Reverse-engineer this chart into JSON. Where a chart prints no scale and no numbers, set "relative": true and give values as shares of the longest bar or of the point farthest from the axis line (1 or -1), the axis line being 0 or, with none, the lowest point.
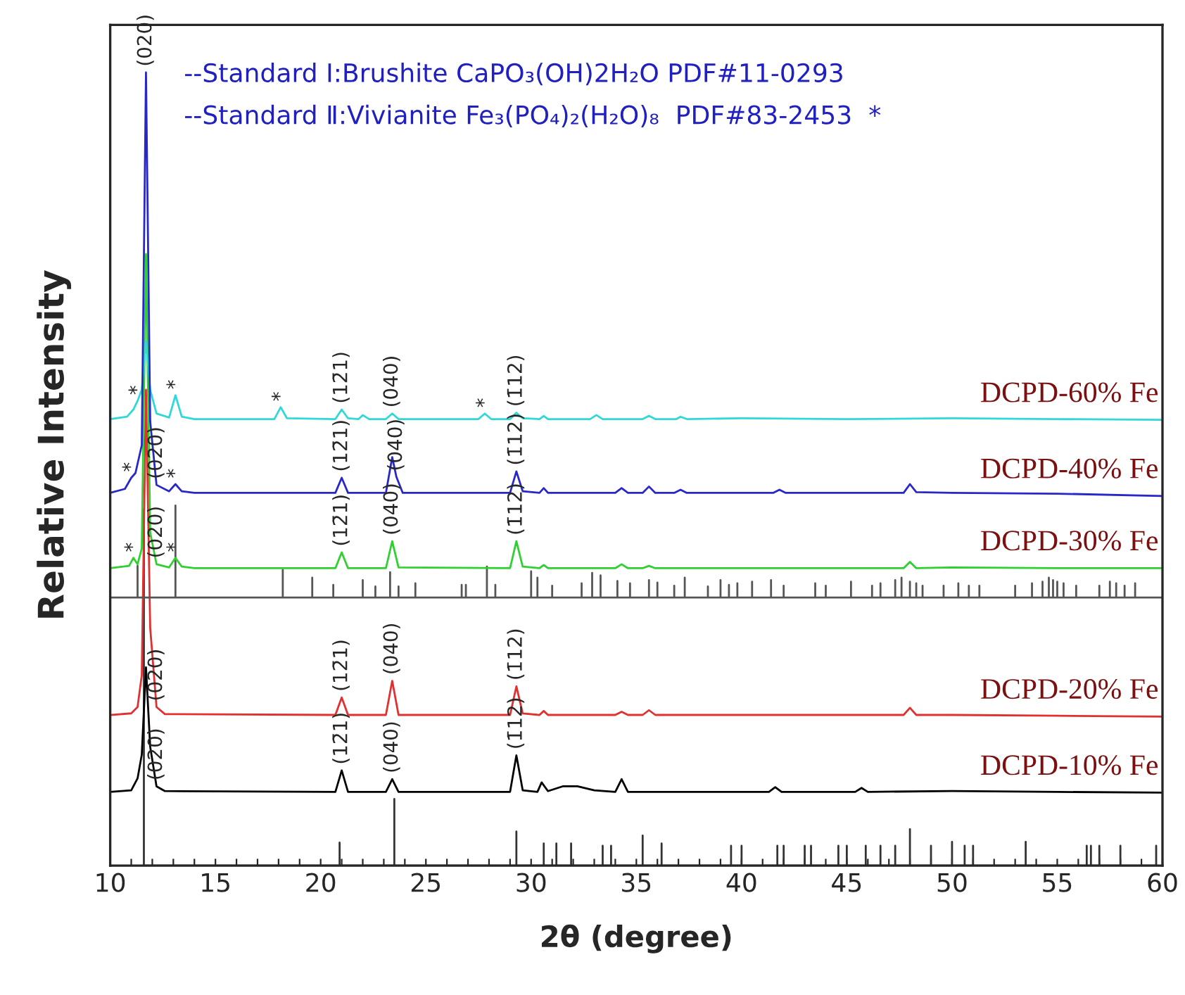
{
  "chart_data": {
    "type": "line",
    "relative": true,
    "xlabel": "2θ (degree)",
    "ylabel": "Relative Intensity",
    "xlim": [
      10,
      60
    ],
    "xticks": [
      10,
      {
        "value": 11,
        "label": null
      },
      {
        "value": 12,
        "label": null
      },
      {
        "value": 13,
        "label": null
      },
      {
        "value": 14,
        "label": null
      },
      15,
      {
        "value": 16,
        "label": null
      },
      {
        "value": 17,
        "label": null
      },
      {
        "value": 18,
        "label": null
      },
      {
        "value": 19,
        "label": null
      },
      20,
      {
        "value": 21,
        "label": null
      },
      {
        "value": 22,
        "label": null
      },
      {
        "value": 23,
        "label": null
      },
      {
        "value": 24,
        "label": null
      },
      25,
      {
        "value": 26,
        "label": null
      },
      {
        "value": 27,
        "label": null
      },
      {
        "value": 28,
        "label": null
      },
      {
        "value": 29,
        "label": null
      },
      30,
      {
        "value": 31,
        "label": null
      },
      {
        "value": 32,
        "label": null
      },
      {
        "value": 33,
        "label": null
      },
      {
        "value": 34,
        "label": null
      },
      35,
      {
        "value": 36,
        "label": null
      },
      {
        "value": 37,
        "label": null
      },
      {
        "value": 38,
        "label": null
      },
      {
        "value": 39,
        "label": null
      },
      40,
      {
        "value": 41,
        "label": null
      },
      {
        "value": 42,
        "label": null
      },
      {
        "value": 43,
        "label": null
      },
      {
        "value": 44,
        "label": null
      },
      45,
      {
        "value": 46,
        "label": null
      },
      {
        "value": 47,
        "label": null
      },
      {
        "value": 48,
        "label": null
      },
      {
        "value": 49,
        "label": null
      },
      50,
      {
        "value": 51,
        "label": null
      },
      {
        "value": 52,
        "label": null
      },
      {
        "value": 53,
        "label": null
      },
      {
        "value": 54,
        "label": null
      },
      55,
      {
        "value": 56,
        "label": null
      },
      {
        "value": 57,
        "label": null
      },
      {
        "value": 58,
        "label": null
      },
      {
        "value": 59,
        "label": null
      },
      60
    ],
    "tick_labels": "x",
    "series": [
      {
        "color": "#333333",
        "x": [
          11.6,
          11.6,
          11.6,
          20.9,
          20.9,
          20.9,
          23.5,
          23.5,
          23.5,
          29.3,
          29.3,
          29.3,
          30.6,
          30.6,
          30.6,
          31.2,
          31.2,
          31.2,
          31.9,
          31.9,
          31.9,
          33.4,
          33.4,
          33.4,
          33.8,
          33.8,
          33.8,
          35.3,
          35.3,
          35.3,
          36.2,
          36.2,
          36.2,
          39.5,
          39.5,
          39.5,
          40.0,
          40.0,
          40.0,
          41.7,
          41.7,
          41.7,
          42.0,
          42.0,
          42.0,
          43.0,
          43.0,
          43.0,
          43.3,
          43.3,
          43.3,
          44.6,
          44.6,
          44.6,
          45.0,
          45.0,
          45.0,
          45.9,
          45.9,
          45.9,
          46.6,
          46.6,
          46.6,
          47.3,
          47.3,
          47.3,
          48.0,
          48.0,
          48.0,
          49.0,
          49.0,
          49.0,
          50.0,
          50.0,
          50.0,
          50.6,
          50.6,
          50.6,
          51.0,
          51.0,
          51.0,
          53.5,
          53.5,
          53.5,
          56.4,
          56.4,
          56.4,
          56.6,
          56.6,
          56.6,
          57.0,
          57.0,
          57.0,
          58.0,
          58.0,
          58.0,
          59.7,
          59.7,
          59.7
        ],
        "values": [
          0,
          0.45,
          0,
          0,
          0.029,
          0,
          0,
          0.084,
          0,
          0,
          0.043,
          0,
          0,
          0.028,
          0,
          0,
          0.028,
          0,
          0,
          0.028,
          0,
          0,
          0.025,
          0,
          0,
          0.025,
          0,
          0,
          0.038,
          0,
          0,
          0.028,
          0,
          0,
          0.025,
          0,
          0,
          0.025,
          0,
          0,
          0.025,
          0,
          0,
          0.025,
          0,
          0,
          0.025,
          0,
          0,
          0.025,
          0,
          0,
          0.025,
          0,
          0,
          0.025,
          0,
          0,
          0.025,
          0,
          0,
          0.025,
          0,
          0,
          0.025,
          0,
          0,
          0.046,
          0,
          0,
          0.025,
          0,
          0,
          0.03,
          0,
          0,
          0.025,
          0,
          0,
          0.025,
          0,
          0,
          0.03,
          0,
          0,
          0.025,
          0,
          0,
          0.025,
          0,
          0,
          0.025,
          0,
          0,
          0.025,
          0,
          0,
          0.025,
          0
        ]
      },
      {
        "color": "#000000",
        "name": "DCPD-10% Fe",
        "x": [
          10,
          11.0,
          11.3,
          11.5,
          11.7,
          11.9,
          12.2,
          12.6,
          20.7,
          21.0,
          21.3,
          23.1,
          23.4,
          23.7,
          29.0,
          29.3,
          29.6,
          30.3,
          30.5,
          30.8,
          31.5,
          32.2,
          33.0,
          34.0,
          34.3,
          34.6,
          41.3,
          41.6,
          41.9,
          45.4,
          45.7,
          46.0,
          50,
          55,
          60
        ],
        "values": [
          0.093,
          0.095,
          0.11,
          0.14,
          0.25,
          0.15,
          0.1,
          0.094,
          0.093,
          0.12,
          0.093,
          0.093,
          0.109,
          0.093,
          0.093,
          0.139,
          0.095,
          0.093,
          0.105,
          0.094,
          0.1,
          0.1,
          0.095,
          0.093,
          0.109,
          0.093,
          0.093,
          0.099,
          0.093,
          0.093,
          0.098,
          0.093,
          0.094,
          0.093,
          0.092
        ]
      },
      {
        "color": "#e03030",
        "name": "DCPD-20% Fe",
        "x": [
          10,
          11.0,
          11.3,
          11.5,
          11.7,
          11.9,
          12.2,
          12.6,
          20.7,
          21.0,
          21.3,
          23.1,
          23.4,
          23.7,
          29.0,
          29.3,
          29.6,
          30.4,
          30.6,
          30.8,
          34.0,
          34.3,
          34.6,
          35.3,
          35.6,
          35.9,
          47.7,
          48.0,
          48.3,
          50,
          55,
          60
        ],
        "values": [
          0.19,
          0.192,
          0.2,
          0.24,
          0.6,
          0.3,
          0.2,
          0.191,
          0.19,
          0.212,
          0.19,
          0.19,
          0.233,
          0.19,
          0.19,
          0.226,
          0.192,
          0.19,
          0.195,
          0.19,
          0.19,
          0.194,
          0.19,
          0.19,
          0.196,
          0.19,
          0.19,
          0.199,
          0.19,
          0.19,
          0.189,
          0.188
        ]
      },
      {
        "color": "#555555",
        "x": [
          10,
          11.3,
          11.3,
          11.3,
          13.1,
          13.1,
          13.1,
          18.2,
          18.2,
          18.2,
          19.6,
          19.6,
          19.6,
          20.6,
          20.6,
          20.6,
          22.0,
          22.0,
          22.0,
          22.6,
          22.6,
          22.6,
          23.3,
          23.3,
          23.3,
          23.7,
          23.7,
          23.7,
          24.5,
          24.5,
          24.5,
          26.7,
          26.7,
          26.7,
          26.9,
          26.9,
          26.9,
          27.9,
          27.9,
          27.9,
          28.3,
          28.3,
          28.3,
          30.0,
          30.0,
          30.0,
          30.3,
          30.3,
          30.3,
          31.0,
          31.0,
          31.0,
          32.4,
          32.4,
          32.4,
          32.9,
          32.9,
          32.9,
          33.3,
          33.3,
          33.3,
          34.1,
          34.1,
          34.1,
          34.7,
          34.7,
          34.7,
          35.6,
          35.6,
          35.6,
          36.0,
          36.0,
          36.0,
          36.8,
          36.8,
          36.8,
          37.3,
          37.3,
          37.3,
          38.4,
          38.4,
          38.4,
          39.0,
          39.0,
          39.0,
          39.4,
          39.4,
          39.4,
          39.8,
          39.8,
          39.8,
          40.5,
          40.5,
          40.5,
          41.4,
          41.4,
          41.4,
          42.0,
          42.0,
          42.0,
          43.5,
          43.5,
          43.5,
          44.0,
          44.0,
          44.0,
          45.2,
          45.2,
          45.2,
          46.2,
          46.2,
          46.2,
          46.6,
          46.6,
          46.6,
          47.3,
          47.3,
          47.3,
          47.6,
          47.6,
          47.6,
          48.0,
          48.0,
          48.0,
          48.3,
          48.3,
          48.3,
          48.6,
          48.6,
          48.6,
          49.6,
          49.6,
          49.6,
          50.3,
          50.3,
          50.3,
          50.8,
          50.8,
          50.8,
          51.3,
          51.3,
          51.3,
          53.0,
          53.0,
          53.0,
          53.8,
          53.8,
          53.8,
          54.3,
          54.3,
          54.3,
          54.6,
          54.6,
          54.6,
          54.8,
          54.8,
          54.8,
          55.0,
          55.0,
          55.0,
          55.3,
          55.3,
          55.3,
          55.9,
          55.9,
          55.9,
          57.0,
          57.0,
          57.0,
          57.5,
          57.5,
          57.5,
          57.8,
          57.8,
          57.8,
          58.2,
          58.2,
          58.2,
          58.7,
          58.7,
          58.7,
          60
        ],
        "values": [
          0.338,
          0.338,
          0.378,
          0.338,
          0.338,
          0.454,
          0.338,
          0.338,
          0.373,
          0.338,
          0.338,
          0.363,
          0.338,
          0.338,
          0.354,
          0.338,
          0.338,
          0.36,
          0.338,
          0.338,
          0.352,
          0.338,
          0.338,
          0.37,
          0.338,
          0.338,
          0.352,
          0.338,
          0.338,
          0.356,
          0.338,
          0.338,
          0.354,
          0.338,
          0.338,
          0.354,
          0.338,
          0.338,
          0.377,
          0.338,
          0.338,
          0.354,
          0.338,
          0.338,
          0.371,
          0.338,
          0.338,
          0.363,
          0.338,
          0.338,
          0.353,
          0.338,
          0.338,
          0.356,
          0.338,
          0.338,
          0.369,
          0.338,
          0.338,
          0.366,
          0.338,
          0.338,
          0.359,
          0.338,
          0.338,
          0.356,
          0.338,
          0.338,
          0.36,
          0.338,
          0.338,
          0.357,
          0.338,
          0.338,
          0.353,
          0.338,
          0.338,
          0.363,
          0.338,
          0.338,
          0.352,
          0.338,
          0.338,
          0.36,
          0.338,
          0.338,
          0.354,
          0.338,
          0.338,
          0.356,
          0.338,
          0.338,
          0.358,
          0.338,
          0.338,
          0.36,
          0.338,
          0.338,
          0.353,
          0.338,
          0.338,
          0.356,
          0.338,
          0.338,
          0.353,
          0.338,
          0.338,
          0.358,
          0.338,
          0.338,
          0.353,
          0.338,
          0.338,
          0.356,
          0.338,
          0.338,
          0.36,
          0.338,
          0.338,
          0.363,
          0.338,
          0.338,
          0.358,
          0.338,
          0.338,
          0.356,
          0.338,
          0.338,
          0.353,
          0.338,
          0.338,
          0.353,
          0.338,
          0.338,
          0.356,
          0.338,
          0.338,
          0.353,
          0.338,
          0.338,
          0.353,
          0.338,
          0.338,
          0.353,
          0.338,
          0.338,
          0.356,
          0.338,
          0.338,
          0.358,
          0.338,
          0.338,
          0.363,
          0.338,
          0.338,
          0.36,
          0.338,
          0.338,
          0.358,
          0.338,
          0.338,
          0.356,
          0.338,
          0.338,
          0.353,
          0.338,
          0.338,
          0.353,
          0.338,
          0.338,
          0.358,
          0.338,
          0.338,
          0.356,
          0.338,
          0.338,
          0.353,
          0.338,
          0.338,
          0.356,
          0.338,
          0.338
        ]
      },
      {
        "color": "#30d030",
        "name": "DCPD-30% Fe",
        "x": [
          10,
          10.9,
          11.1,
          11.3,
          11.5,
          11.7,
          11.9,
          12.2,
          12.8,
          13.1,
          13.4,
          14,
          20.7,
          21.0,
          21.3,
          23.1,
          23.4,
          23.7,
          29.0,
          29.3,
          29.6,
          30.4,
          30.6,
          30.8,
          34.0,
          34.3,
          34.6,
          35.3,
          35.6,
          35.9,
          47.7,
          48.0,
          48.3,
          50,
          55,
          60
        ],
        "values": [
          0.375,
          0.378,
          0.388,
          0.38,
          0.4,
          0.771,
          0.42,
          0.38,
          0.376,
          0.388,
          0.377,
          0.375,
          0.375,
          0.395,
          0.375,
          0.375,
          0.409,
          0.376,
          0.375,
          0.409,
          0.377,
          0.375,
          0.379,
          0.375,
          0.375,
          0.38,
          0.375,
          0.375,
          0.378,
          0.375,
          0.375,
          0.383,
          0.375,
          0.376,
          0.375,
          0.375
        ]
      },
      {
        "color": "#30d8d8",
        "name": "DCPD-60% Fe",
        "x": [
          10,
          10.8,
          11.1,
          11.3,
          11.5,
          11.7,
          11.9,
          12.2,
          12.8,
          13.1,
          13.4,
          14,
          17.8,
          18.1,
          18.4,
          20.7,
          21.0,
          21.3,
          21.8,
          22.0,
          22.3,
          23.1,
          23.4,
          23.7,
          27.5,
          27.8,
          28.1,
          29.0,
          29.3,
          29.6,
          30.4,
          30.6,
          30.8,
          32.8,
          33.1,
          33.4,
          35.3,
          35.6,
          35.9,
          36.9,
          37.1,
          37.4,
          40,
          45,
          50,
          55,
          60
        ],
        "values": [
          0.563,
          0.566,
          0.575,
          0.586,
          0.6,
          0.661,
          0.6,
          0.57,
          0.565,
          0.593,
          0.566,
          0.563,
          0.563,
          0.578,
          0.564,
          0.563,
          0.575,
          0.564,
          0.563,
          0.568,
          0.563,
          0.563,
          0.57,
          0.563,
          0.563,
          0.57,
          0.563,
          0.563,
          0.571,
          0.564,
          0.563,
          0.567,
          0.563,
          0.563,
          0.568,
          0.563,
          0.563,
          0.567,
          0.563,
          0.563,
          0.566,
          0.563,
          0.564,
          0.563,
          0.564,
          0.563,
          0.562
        ]
      },
      {
        "color": "#2828c8",
        "name": "DCPD-40% Fe",
        "x": [
          10,
          10.7,
          11.0,
          11.2,
          11.5,
          11.7,
          11.9,
          12.2,
          12.8,
          13.1,
          13.4,
          14,
          20.7,
          21.0,
          21.3,
          23.1,
          23.4,
          23.6,
          23.9,
          29.0,
          29.3,
          29.6,
          30.4,
          30.6,
          30.8,
          34.0,
          34.3,
          34.6,
          35.3,
          35.6,
          35.9,
          36.8,
          37.1,
          37.4,
          41.5,
          41.8,
          42.1,
          47.7,
          48.0,
          48.3,
          50,
          55,
          60
        ],
        "values": [
          0.47,
          0.475,
          0.489,
          0.495,
          0.53,
          1.0,
          0.56,
          0.48,
          0.472,
          0.481,
          0.472,
          0.47,
          0.47,
          0.489,
          0.47,
          0.47,
          0.515,
          0.49,
          0.47,
          0.47,
          0.497,
          0.472,
          0.47,
          0.476,
          0.47,
          0.47,
          0.476,
          0.47,
          0.47,
          0.478,
          0.47,
          0.47,
          0.474,
          0.47,
          0.47,
          0.474,
          0.47,
          0.47,
          0.481,
          0.471,
          0.47,
          0.469,
          0.466
        ]
      }
    ],
    "annotations": [
      "--Standard Ⅰ:Brushite CaPO₃(OH)2H₂O PDF#11-0293",
      "--Standard Ⅱ:Vivianite Fe₃(PO₄)₂(H₂O)₈  PDF#83-2453  *",
      {
        "text": "(020)",
        "x": 11.7,
        "y": 1.0
      },
      {
        "text": "*",
        "x": 11.3,
        "y": 0.586
      },
      {
        "text": "*",
        "x": 13.1,
        "y": 0.593
      },
      {
        "text": "*",
        "x": 18.1,
        "y": 0.578
      },
      {
        "text": "(12̄1)",
        "x": 21.0,
        "y": 0.575
      },
      {
        "text": "(040)",
        "x": 23.4,
        "y": 0.57
      },
      {
        "text": "*",
        "x": 27.8,
        "y": 0.57
      },
      {
        "text": "(1̄12)",
        "x": 29.3,
        "y": 0.571
      },
      {
        "text": "*",
        "x": 11.0,
        "y": 0.489
      },
      {
        "text": "(020)",
        "x": 12.2,
        "y": 0.48
      },
      {
        "text": "*",
        "x": 13.1,
        "y": 0.481
      },
      {
        "text": "(12̄1)",
        "x": 21.0,
        "y": 0.489
      },
      {
        "text": "(040)",
        "x": 23.6,
        "y": 0.49
      },
      {
        "text": "(1̄12)",
        "x": 29.3,
        "y": 0.497
      },
      {
        "text": "*",
        "x": 11.1,
        "y": 0.388
      },
      {
        "text": "(020)",
        "x": 12.2,
        "y": 0.38
      },
      {
        "text": "*",
        "x": 13.1,
        "y": 0.388
      },
      {
        "text": "(12̄1)",
        "x": 21.0,
        "y": 0.395
      },
      {
        "text": "(040)",
        "x": 23.4,
        "y": 0.409
      },
      {
        "text": "(1̄12)",
        "x": 29.3,
        "y": 0.409
      },
      {
        "text": "(020)",
        "x": 12.2,
        "y": 0.2
      },
      {
        "text": "(12̄1)",
        "x": 21.0,
        "y": 0.212
      },
      {
        "text": "(040)",
        "x": 23.4,
        "y": 0.233
      },
      {
        "text": "(1̄12)",
        "x": 29.3,
        "y": 0.226
      },
      {
        "text": "(020)",
        "x": 12.2,
        "y": 0.1
      },
      {
        "text": "(12̄1)",
        "x": 21.0,
        "y": 0.12
      },
      {
        "text": "(040)",
        "x": 23.4,
        "y": 0.109
      },
      {
        "text": "(1̄12)",
        "x": 29.3,
        "y": 0.139
      }
    ]
  }
}
